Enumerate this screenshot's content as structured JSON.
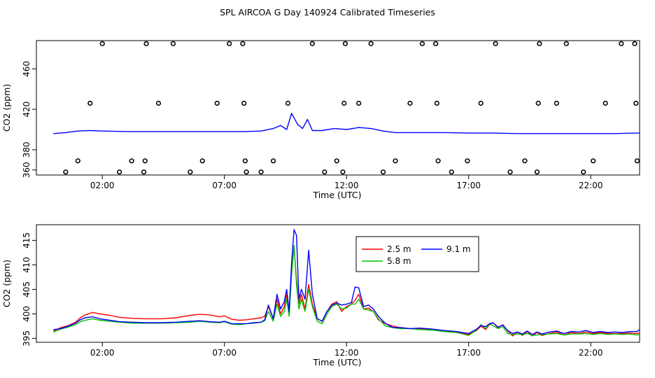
{
  "title": "SPL AIRCOA G  Day 140924  Calibrated Timeseries",
  "chart_data": [
    {
      "type": "scatter",
      "name": "flag-panel",
      "xlabel": "Time (UTC)",
      "ylabel": "CO2 (ppm)",
      "xlim": [
        -0.7,
        24.0
      ],
      "ylim": [
        355,
        488
      ],
      "x_ticks": [
        2,
        7,
        12,
        17,
        22
      ],
      "x_tick_labels": [
        "02:00",
        "07:00",
        "12:00",
        "17:00",
        "22:00"
      ],
      "y_ticks": [
        360,
        380,
        420,
        460
      ],
      "y_tick_labels": [
        "360",
        "380",
        "420",
        "460"
      ],
      "series": [
        {
          "name": "CO2 line",
          "style": "line",
          "color": "#0000ff",
          "x": [
            0.0,
            0.5,
            1.0,
            1.5,
            2.0,
            3.0,
            4.0,
            5.0,
            6.0,
            7.0,
            7.8,
            8.5,
            9.0,
            9.3,
            9.55,
            9.75,
            10.0,
            10.2,
            10.4,
            10.6,
            11.0,
            11.5,
            12.0,
            12.5,
            13.0,
            13.5,
            14.0,
            15.0,
            16.0,
            17.0,
            18.0,
            19.0,
            20.0,
            21.0,
            22.0,
            23.0,
            24.0
          ],
          "y": [
            396,
            397,
            398.5,
            399,
            398.5,
            398,
            398,
            398,
            398,
            398,
            398,
            398.5,
            401,
            404,
            400,
            416,
            405,
            401,
            410,
            399,
            399,
            401,
            400,
            402,
            401,
            398.5,
            397,
            397,
            397,
            396.5,
            396.5,
            396,
            396,
            396,
            396,
            396,
            396.5
          ]
        },
        {
          "name": "hourly points",
          "style": "open-circle",
          "color": "#000000",
          "x": [
            0.5,
            1.0,
            1.5,
            2.0,
            2.7,
            3.2,
            3.7,
            3.75,
            3.8,
            4.3,
            4.9,
            5.6,
            6.1,
            6.7,
            7.2,
            7.75,
            7.8,
            7.85,
            7.9,
            8.5,
            9.0,
            9.6,
            10.6,
            11.1,
            11.6,
            11.85,
            11.9,
            11.95,
            12.5,
            13.0,
            13.5,
            14.0,
            14.6,
            15.1,
            15.65,
            15.7,
            15.75,
            16.3,
            16.95,
            17.5,
            18.1,
            18.7,
            19.3,
            19.8,
            19.85,
            19.9,
            20.6,
            21.0,
            21.7,
            22.1,
            22.6,
            23.25,
            23.8,
            23.85,
            23.9
          ],
          "y": [
            358,
            369,
            426,
            485,
            358,
            369,
            358,
            369,
            485,
            426,
            485,
            358,
            369,
            426,
            485,
            485,
            426,
            369,
            358,
            358,
            369,
            426,
            485,
            358,
            369,
            358,
            426,
            485,
            426,
            485,
            358,
            369,
            426,
            485,
            485,
            426,
            369,
            358,
            369,
            426,
            485,
            358,
            369,
            358,
            426,
            485,
            426,
            485,
            358,
            369,
            426,
            485,
            485,
            426,
            369
          ]
        }
      ]
    },
    {
      "type": "line",
      "name": "height-panel",
      "xlabel": "Time (UTC)",
      "ylabel": "CO2 (ppm)",
      "xlim": [
        -0.7,
        24.0
      ],
      "ylim": [
        394.2,
        418.2
      ],
      "x_ticks": [
        2,
        7,
        12,
        17,
        22
      ],
      "x_tick_labels": [
        "02:00",
        "07:00",
        "12:00",
        "17:00",
        "22:00"
      ],
      "y_ticks": [
        395,
        400,
        405,
        410,
        415
      ],
      "y_tick_labels": [
        "395",
        "400",
        "405",
        "410",
        "415"
      ],
      "legend": [
        "2.5 m",
        "9.1 m",
        "5.8 m"
      ],
      "series": [
        {
          "name": "2.5 m",
          "color": "#ff0000",
          "x": [
            0.0,
            0.3,
            0.6,
            0.9,
            1.1,
            1.3,
            1.6,
            1.9,
            2.3,
            2.7,
            3.2,
            3.8,
            4.4,
            5.0,
            5.6,
            6.0,
            6.4,
            6.8,
            7.0,
            7.3,
            7.6,
            7.9,
            8.2,
            8.5,
            8.65,
            8.8,
            9.0,
            9.15,
            9.3,
            9.45,
            9.55,
            9.65,
            9.75,
            9.85,
            9.95,
            10.05,
            10.15,
            10.3,
            10.45,
            10.6,
            10.8,
            11.0,
            11.2,
            11.4,
            11.6,
            11.8,
            12.0,
            12.2,
            12.35,
            12.5,
            12.7,
            12.9,
            13.1,
            13.3,
            13.6,
            13.9,
            14.2,
            14.6,
            15.0,
            15.5,
            16.0,
            16.5,
            17.0,
            17.3,
            17.5,
            17.7,
            17.85,
            18.0,
            18.2,
            18.4,
            18.6,
            18.8,
            19.0,
            19.2,
            19.4,
            19.6,
            19.8,
            20.0,
            20.3,
            20.6,
            20.9,
            21.2,
            21.5,
            21.8,
            22.1,
            22.4,
            22.7,
            23.0,
            23.3,
            23.6,
            23.9,
            24.0
          ],
          "y": [
            396.5,
            397.2,
            397.6,
            398.3,
            399.2,
            399.8,
            400.3,
            400.0,
            399.7,
            399.3,
            399.1,
            399.0,
            399.0,
            399.2,
            399.7,
            399.9,
            399.8,
            399.4,
            399.6,
            398.9,
            398.7,
            398.8,
            399.0,
            399.2,
            399.5,
            401.5,
            399.0,
            403.0,
            400.0,
            401.5,
            404.0,
            400.5,
            409.0,
            413.5,
            407.0,
            402.0,
            404.0,
            401.0,
            406.0,
            402.0,
            399.0,
            398.5,
            400.5,
            402.0,
            402.5,
            400.5,
            401.5,
            402.0,
            402.8,
            404.0,
            401.0,
            401.2,
            400.5,
            398.8,
            398.0,
            397.5,
            397.2,
            397.0,
            397.0,
            396.8,
            396.5,
            396.2,
            395.8,
            396.5,
            397.5,
            396.8,
            397.8,
            398.2,
            397.2,
            397.8,
            396.5,
            395.5,
            396.3,
            395.6,
            396.4,
            395.5,
            396.2,
            395.6,
            396.0,
            396.3,
            395.7,
            396.2,
            396.0,
            396.3,
            396.0,
            396.2,
            396.0,
            396.0,
            396.0,
            396.1,
            396.0,
            396.1
          ]
        },
        {
          "name": "5.8 m",
          "color": "#00c000",
          "x": [
            0.0,
            0.3,
            0.6,
            0.9,
            1.1,
            1.3,
            1.6,
            1.9,
            2.3,
            2.7,
            3.2,
            3.8,
            4.4,
            5.0,
            5.6,
            6.0,
            6.4,
            6.8,
            7.0,
            7.3,
            7.6,
            7.9,
            8.2,
            8.5,
            8.65,
            8.8,
            9.0,
            9.15,
            9.3,
            9.45,
            9.55,
            9.65,
            9.75,
            9.85,
            9.95,
            10.05,
            10.15,
            10.3,
            10.45,
            10.6,
            10.8,
            11.0,
            11.2,
            11.4,
            11.6,
            11.8,
            12.0,
            12.2,
            12.35,
            12.5,
            12.7,
            12.9,
            13.1,
            13.3,
            13.6,
            13.9,
            14.2,
            14.6,
            15.0,
            15.5,
            16.0,
            16.5,
            17.0,
            17.3,
            17.5,
            17.7,
            17.85,
            18.0,
            18.2,
            18.4,
            18.6,
            18.8,
            19.0,
            19.2,
            19.4,
            19.6,
            19.8,
            20.0,
            20.3,
            20.6,
            20.9,
            21.2,
            21.5,
            21.8,
            22.1,
            22.4,
            22.7,
            23.0,
            23.3,
            23.6,
            23.9,
            24.0
          ],
          "y": [
            396.3,
            396.9,
            397.3,
            397.8,
            398.4,
            398.7,
            399.0,
            398.7,
            398.5,
            398.3,
            398.1,
            398.1,
            398.1,
            398.2,
            398.3,
            398.5,
            398.3,
            398.2,
            398.4,
            397.9,
            397.8,
            398.0,
            398.1,
            398.3,
            398.6,
            400.5,
            398.5,
            402.0,
            399.5,
            400.5,
            403.0,
            399.5,
            408.0,
            414.0,
            406.0,
            401.0,
            403.0,
            400.5,
            405.0,
            401.5,
            398.5,
            398.0,
            400.0,
            401.5,
            402.0,
            401.0,
            401.2,
            402.0,
            402.0,
            403.0,
            401.0,
            400.8,
            400.5,
            399.0,
            397.5,
            397.2,
            397.0,
            397.0,
            396.8,
            396.7,
            396.4,
            396.2,
            395.6,
            396.6,
            397.8,
            397.0,
            398.0,
            397.6,
            397.0,
            397.4,
            396.0,
            395.8,
            395.9,
            395.8,
            396.0,
            395.6,
            395.7,
            395.8,
            395.9,
            396.0,
            395.7,
            395.9,
            395.9,
            396.0,
            395.8,
            396.0,
            395.8,
            395.9,
            395.8,
            395.9,
            395.7,
            395.8
          ]
        },
        {
          "name": "9.1 m",
          "color": "#0000ff",
          "x": [
            0.0,
            0.3,
            0.6,
            0.9,
            1.1,
            1.3,
            1.6,
            1.9,
            2.3,
            2.7,
            3.2,
            3.8,
            4.4,
            5.0,
            5.6,
            6.0,
            6.4,
            6.8,
            7.0,
            7.3,
            7.6,
            7.9,
            8.2,
            8.5,
            8.65,
            8.8,
            9.0,
            9.15,
            9.3,
            9.45,
            9.55,
            9.65,
            9.75,
            9.85,
            9.95,
            10.05,
            10.15,
            10.3,
            10.45,
            10.6,
            10.8,
            11.0,
            11.2,
            11.4,
            11.6,
            11.8,
            12.0,
            12.2,
            12.35,
            12.5,
            12.7,
            12.9,
            13.1,
            13.3,
            13.6,
            13.9,
            14.2,
            14.6,
            15.0,
            15.5,
            16.0,
            16.5,
            17.0,
            17.3,
            17.5,
            17.7,
            17.85,
            18.0,
            18.2,
            18.4,
            18.6,
            18.8,
            19.0,
            19.2,
            19.4,
            19.6,
            19.8,
            20.0,
            20.3,
            20.6,
            20.9,
            21.2,
            21.5,
            21.8,
            22.1,
            22.4,
            22.7,
            23.0,
            23.3,
            23.6,
            23.9,
            24.0
          ],
          "y": [
            396.8,
            397.0,
            397.5,
            398.1,
            398.8,
            399.2,
            399.4,
            399.0,
            398.7,
            398.4,
            398.3,
            398.2,
            398.2,
            398.3,
            398.5,
            398.6,
            398.4,
            398.3,
            398.5,
            398.0,
            398.0,
            398.0,
            398.2,
            398.3,
            398.8,
            401.8,
            399.0,
            404.0,
            401.0,
            402.5,
            405.0,
            400.5,
            410.5,
            417.2,
            416.0,
            403.0,
            405.0,
            403.0,
            413.0,
            404.0,
            399.0,
            398.5,
            400.5,
            401.8,
            402.2,
            401.8,
            402.0,
            402.3,
            405.5,
            405.3,
            401.5,
            401.8,
            401.0,
            399.5,
            398.0,
            397.2,
            397.2,
            397.0,
            397.1,
            396.9,
            396.6,
            396.4,
            396.0,
            396.8,
            397.6,
            397.4,
            398.0,
            398.2,
            397.3,
            397.7,
            396.6,
            396.0,
            396.3,
            395.9,
            396.5,
            395.8,
            396.3,
            395.9,
            396.3,
            396.5,
            396.0,
            396.4,
            396.3,
            396.6,
            396.2,
            396.4,
            396.2,
            396.3,
            396.2,
            396.4,
            396.4,
            396.8
          ]
        }
      ]
    }
  ]
}
